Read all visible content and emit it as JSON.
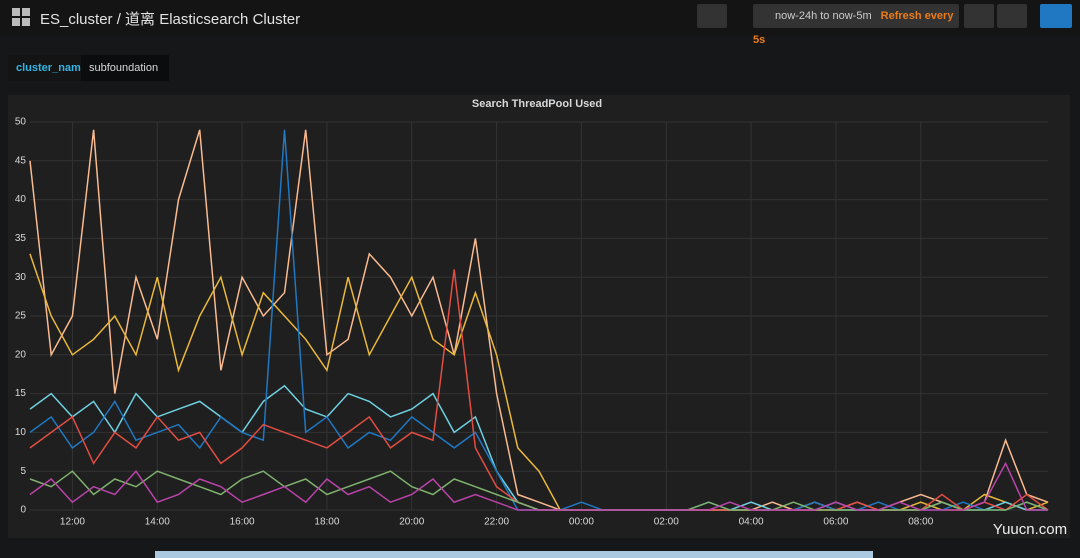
{
  "header": {
    "title": "ES_cluster / 道离 Elasticsearch Cluster",
    "time_range": "now-24h to now-5m",
    "refresh": "Refresh every 5s"
  },
  "variable": {
    "label": "cluster_name",
    "value": "subfoundation"
  },
  "watermark": "Yuucn.com",
  "chart_data": {
    "type": "line",
    "title": "Search ThreadPool Used",
    "x": [
      11,
      11.5,
      12,
      12.5,
      13,
      13.5,
      14,
      14.5,
      15,
      15.5,
      16,
      16.5,
      17,
      17.5,
      18,
      18.5,
      19,
      19.5,
      20,
      20.5,
      21,
      21.5,
      22,
      22.5,
      23,
      23.5,
      24,
      24.5,
      25,
      25.5,
      26,
      26.5,
      27,
      27.5,
      28,
      28.5,
      29,
      29.5,
      30,
      30.5,
      31,
      31.5,
      32,
      32.5,
      33,
      33.5,
      34,
      34.5,
      35
    ],
    "series": [
      {
        "color": "#f9ba8f",
        "values": [
          45,
          20,
          25,
          49,
          15,
          30,
          22,
          40,
          49,
          18,
          30,
          25,
          28,
          49,
          20,
          22,
          33,
          30,
          25,
          30,
          20,
          35,
          15,
          2,
          1,
          0,
          0,
          0,
          0,
          0,
          0,
          0,
          0,
          0,
          0,
          1,
          0,
          1,
          0,
          1,
          0,
          1,
          2,
          1,
          0,
          1,
          9,
          2,
          1
        ]
      },
      {
        "color": "#eab839",
        "values": [
          33,
          25,
          20,
          22,
          25,
          20,
          30,
          18,
          25,
          30,
          20,
          28,
          25,
          22,
          18,
          30,
          20,
          25,
          30,
          22,
          20,
          28,
          20,
          8,
          5,
          0,
          0,
          0,
          0,
          0,
          0,
          0,
          0,
          0,
          0,
          0,
          0,
          0,
          0,
          0,
          0,
          0,
          1,
          0,
          0,
          2,
          1,
          0,
          1
        ]
      },
      {
        "color": "#6ed0e0",
        "values": [
          13,
          15,
          12,
          14,
          10,
          15,
          12,
          13,
          14,
          12,
          10,
          14,
          16,
          13,
          12,
          15,
          14,
          12,
          13,
          15,
          10,
          12,
          5,
          1,
          0,
          0,
          0,
          0,
          0,
          0,
          0,
          0,
          0,
          0,
          1,
          0,
          0,
          0,
          1,
          0,
          0,
          0,
          0,
          1,
          0,
          0,
          1,
          0,
          0
        ]
      },
      {
        "color": "#1f78c1",
        "values": [
          10,
          12,
          8,
          10,
          14,
          9,
          10,
          11,
          8,
          12,
          10,
          9,
          49,
          10,
          12,
          8,
          10,
          9,
          12,
          10,
          8,
          10,
          5,
          0,
          0,
          0,
          1,
          0,
          0,
          0,
          0,
          0,
          1,
          0,
          0,
          0,
          0,
          1,
          0,
          0,
          1,
          0,
          0,
          0,
          1,
          0,
          0,
          1,
          0
        ]
      },
      {
        "color": "#e24d42",
        "values": [
          8,
          10,
          12,
          6,
          10,
          8,
          12,
          9,
          10,
          6,
          8,
          11,
          10,
          9,
          8,
          10,
          12,
          8,
          10,
          9,
          31,
          8,
          3,
          1,
          0,
          0,
          0,
          0,
          0,
          0,
          0,
          0,
          0,
          0,
          0,
          0,
          0,
          0,
          0,
          1,
          0,
          0,
          0,
          2,
          0,
          1,
          0,
          2,
          0
        ]
      },
      {
        "color": "#7eb26d",
        "values": [
          4,
          3,
          5,
          2,
          4,
          3,
          5,
          4,
          3,
          2,
          4,
          5,
          3,
          4,
          2,
          3,
          4,
          5,
          3,
          2,
          4,
          3,
          2,
          1,
          0,
          0,
          0,
          0,
          0,
          0,
          0,
          0,
          1,
          0,
          0,
          0,
          1,
          0,
          0,
          0,
          0,
          0,
          0,
          1,
          0,
          0,
          0,
          1,
          0
        ]
      },
      {
        "color": "#ba43a9",
        "values": [
          2,
          4,
          1,
          3,
          2,
          5,
          1,
          2,
          4,
          3,
          1,
          2,
          3,
          1,
          4,
          2,
          3,
          1,
          2,
          4,
          1,
          2,
          1,
          0,
          0,
          0,
          0,
          0,
          0,
          0,
          0,
          0,
          0,
          1,
          0,
          0,
          0,
          0,
          1,
          0,
          0,
          1,
          0,
          0,
          0,
          1,
          6,
          0,
          0
        ]
      }
    ],
    "xlim": [
      11,
      35
    ],
    "ylim": [
      0,
      50
    ],
    "xticks": [
      {
        "value": 12,
        "label": "12:00"
      },
      {
        "value": 14,
        "label": "14:00"
      },
      {
        "value": 16,
        "label": "16:00"
      },
      {
        "value": 18,
        "label": "18:00"
      },
      {
        "value": 20,
        "label": "20:00"
      },
      {
        "value": 22,
        "label": "22:00"
      },
      {
        "value": 24,
        "label": "00:00"
      },
      {
        "value": 26,
        "label": "02:00"
      },
      {
        "value": 28,
        "label": "04:00"
      },
      {
        "value": 30,
        "label": "06:00"
      },
      {
        "value": 32,
        "label": "08:00"
      }
    ],
    "yticks": [
      0,
      5,
      10,
      15,
      20,
      25,
      30,
      35,
      40,
      45,
      50
    ],
    "grid": true
  }
}
